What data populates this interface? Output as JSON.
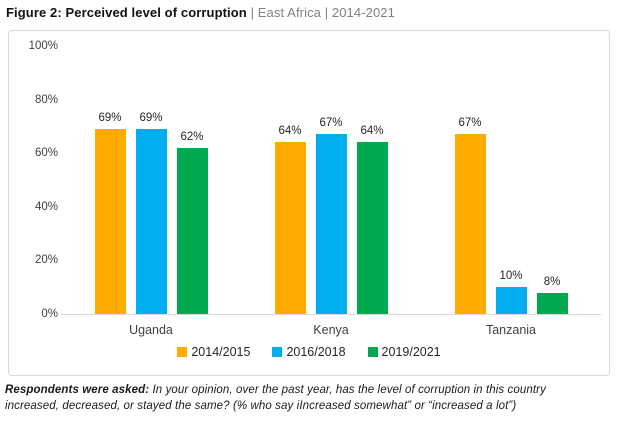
{
  "title": {
    "bold": "Figure 2: Perceived level of corruption",
    "rest": " | East Africa | 2014-2021"
  },
  "chart_data": {
    "type": "bar",
    "title": "Figure 2: Perceived level of corruption | East Africa | 2014-2021",
    "categories": [
      "Uganda",
      "Kenya",
      "Tanzania"
    ],
    "series": [
      {
        "name": "2014/2015",
        "color": "#FFAB00",
        "values": [
          69,
          64,
          67
        ]
      },
      {
        "name": "2016/2018",
        "color": "#00AEEF",
        "values": [
          69,
          67,
          10
        ]
      },
      {
        "name": "2019/2021",
        "color": "#00A94F",
        "values": [
          62,
          64,
          8
        ]
      }
    ],
    "value_suffix": "%",
    "ylim": [
      0,
      100
    ],
    "yticks": [
      "100%",
      "80%",
      "60%",
      "40%",
      "20%",
      "0%"
    ],
    "grid": false,
    "legend_position": "bottom",
    "axis_color": "#d9d9d9"
  },
  "footnote": {
    "lead": "Respondents were asked:",
    "line1_rest": " In your opinion, over the past year, has the level of corruption in this country",
    "line2": "increased, decreased, or stayed the same? (% who say iIncreased somewhat” or “increased a lot”)"
  }
}
